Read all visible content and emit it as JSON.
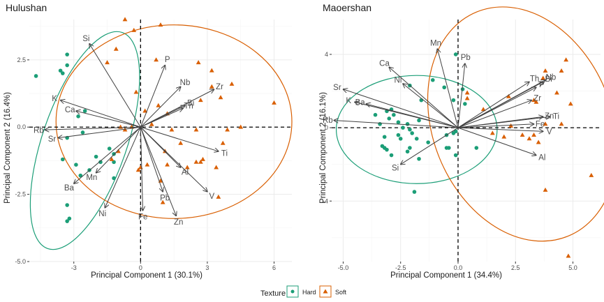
{
  "legend": {
    "title": "Texture",
    "items": [
      {
        "label": "Hard",
        "shape": "circle",
        "color": "#1b9e77"
      },
      {
        "label": "Soft",
        "shape": "triangle",
        "color": "#d95f02"
      }
    ]
  },
  "colors": {
    "hard": "#1b9e77",
    "soft": "#d95f02",
    "arrow": "#404040",
    "label": "#4d4d4d"
  },
  "chart_data": [
    {
      "type": "scatter",
      "subtype": "pca-biplot",
      "title": "Hulushan",
      "xlabel": "Principal Component 1 (30.1%)",
      "ylabel": "Principal Component 2 (16.4%)",
      "xlim": [
        -5.0,
        6.8
      ],
      "ylim": [
        -5.0,
        4.0
      ],
      "xticks": [
        -3,
        0,
        3,
        6
      ],
      "xtick_labels": [
        "-3",
        "0",
        "3",
        "6"
      ],
      "yticks": [
        2.5,
        0.0,
        -2.5,
        -5.0
      ],
      "ytick_labels": [
        "2.5",
        "0.0",
        "-2.5",
        "-5.0"
      ],
      "grid": true,
      "series": [
        {
          "name": "Hard",
          "points": [
            [
              -4.7,
              1.9
            ],
            [
              -3.5,
              2.0
            ],
            [
              -3.6,
              2.1
            ],
            [
              -3.3,
              2.3
            ],
            [
              -3.3,
              2.7
            ],
            [
              -2.6,
              -0.2
            ],
            [
              -2.8,
              0.4
            ],
            [
              -3.3,
              -0.4
            ],
            [
              -2.5,
              0.6
            ],
            [
              -2.0,
              -1.1
            ],
            [
              -2.3,
              -1.6
            ],
            [
              -2.7,
              -1.8
            ],
            [
              -3.5,
              -1.2
            ],
            [
              -2.9,
              -1.4
            ],
            [
              -1.4,
              -0.8
            ],
            [
              -1.8,
              -1.3
            ],
            [
              -1.2,
              -1.0
            ],
            [
              -1.2,
              -1.3
            ],
            [
              -3.3,
              -2.9
            ],
            [
              -3.2,
              -3.4
            ],
            [
              -3.3,
              -3.5
            ],
            [
              -1.2,
              -1.9
            ]
          ]
        },
        {
          "name": "Soft",
          "points": [
            [
              -0.7,
              4.0
            ],
            [
              -0.3,
              3.6
            ],
            [
              0.9,
              3.8
            ],
            [
              -1.1,
              2.9
            ],
            [
              -1.5,
              2.4
            ],
            [
              0.7,
              2.5
            ],
            [
              -0.2,
              1.3
            ],
            [
              -0.9,
              0.0
            ],
            [
              -0.7,
              -0.1
            ],
            [
              -0.4,
              0.0
            ],
            [
              2.6,
              2.4
            ],
            [
              3.2,
              2.1
            ],
            [
              3.2,
              1.5
            ],
            [
              4.1,
              1.6
            ],
            [
              3.6,
              1.1
            ],
            [
              2.7,
              1.0
            ],
            [
              0.2,
              0.6
            ],
            [
              0.8,
              0.8
            ],
            [
              1.2,
              0.5
            ],
            [
              0.5,
              0.1
            ],
            [
              1.4,
              -0.1
            ],
            [
              2.5,
              -0.1
            ],
            [
              3.9,
              -0.1
            ],
            [
              6.0,
              0.9
            ],
            [
              4.5,
              0.0
            ],
            [
              -1.3,
              -1.2
            ],
            [
              -1.0,
              -0.9
            ],
            [
              0.0,
              -1.5
            ],
            [
              -0.1,
              -1.6
            ],
            [
              0.3,
              -1.4
            ],
            [
              1.2,
              -1.4
            ],
            [
              1.1,
              -0.9
            ],
            [
              1.8,
              -0.6
            ],
            [
              0.9,
              -2.0
            ],
            [
              1.0,
              -2.8
            ],
            [
              2.1,
              -1.5
            ],
            [
              2.8,
              -1.2
            ],
            [
              3.4,
              -1.5
            ],
            [
              3.7,
              -0.6
            ],
            [
              2.5,
              -1.3
            ],
            [
              2.7,
              -1.3
            ],
            [
              3.5,
              -2.6
            ]
          ]
        }
      ],
      "ellipses": [
        {
          "group": "Hard",
          "center": [
            -2.5,
            -0.5
          ],
          "semi_axes": [
            1.9,
            4.25
          ],
          "angle_deg": -19
        },
        {
          "group": "Soft",
          "center": [
            1.5,
            0.2
          ],
          "semi_axes": [
            5.3,
            3.6
          ],
          "angle_deg": 0
        }
      ],
      "loadings": [
        {
          "var": "Si",
          "x": -2.3,
          "y": 3.1
        },
        {
          "var": "P",
          "x": 1.1,
          "y": 2.3
        },
        {
          "var": "Nb",
          "x": 1.8,
          "y": 1.5
        },
        {
          "var": "Zr",
          "x": 3.3,
          "y": 1.4
        },
        {
          "var": "Bi",
          "x": 2.0,
          "y": 0.8
        },
        {
          "var": "Th",
          "x": 1.9,
          "y": 0.7
        },
        {
          "var": "K",
          "x": -3.6,
          "y": 1.0
        },
        {
          "var": "Ca",
          "x": -2.9,
          "y": 0.6
        },
        {
          "var": "Rb",
          "x": -4.3,
          "y": -0.1
        },
        {
          "var": "Sr",
          "x": -3.7,
          "y": -0.4
        },
        {
          "var": "Ti",
          "x": 3.5,
          "y": -0.9
        },
        {
          "var": "Mn",
          "x": -2.0,
          "y": -1.7
        },
        {
          "var": "Ba",
          "x": -3.0,
          "y": -2.1
        },
        {
          "var": "Al",
          "x": 1.8,
          "y": -1.5
        },
        {
          "var": "V",
          "x": 3.0,
          "y": -2.4
        },
        {
          "var": "Pb",
          "x": 1.0,
          "y": -2.4
        },
        {
          "var": "Ni",
          "x": -1.6,
          "y": -3.0
        },
        {
          "var": "Fe",
          "x": 0.1,
          "y": -3.1
        },
        {
          "var": "Zn",
          "x": 1.6,
          "y": -3.3
        }
      ]
    },
    {
      "type": "scatter",
      "subtype": "pca-biplot",
      "title": "Maoershan",
      "xlabel": "Principal Component 1 (34.4%)",
      "ylabel": "Principal Component 2 (16.1%)",
      "xlim": [
        -5.5,
        6.2
      ],
      "ylim": [
        -7.3,
        5.9
      ],
      "xticks": [
        -5.0,
        -2.5,
        0.0,
        2.5,
        5.0
      ],
      "xtick_labels": [
        "-5.0",
        "-2.5",
        "0.0",
        "2.5",
        "5.0"
      ],
      "yticks": [
        4,
        0,
        -4
      ],
      "ytick_labels": [
        "4",
        "0",
        "-4"
      ],
      "grid": true,
      "series": [
        {
          "name": "Hard",
          "points": [
            [
              -0.1,
              4.0
            ],
            [
              -1.1,
              2.6
            ],
            [
              -2.1,
              2.3
            ],
            [
              -0.6,
              2.2
            ],
            [
              -2.9,
              1.0
            ],
            [
              -3.1,
              0.9
            ],
            [
              -3.6,
              0.7
            ],
            [
              -2.8,
              0.7
            ],
            [
              -1.6,
              1.5
            ],
            [
              -0.2,
              1.5
            ],
            [
              0.2,
              2.1
            ],
            [
              0.3,
              1.3
            ],
            [
              -3.0,
              0.5
            ],
            [
              -3.4,
              0.2
            ],
            [
              -2.6,
              0.3
            ],
            [
              -2.2,
              0.2
            ],
            [
              -1.7,
              0.4
            ],
            [
              -2.4,
              0.0
            ],
            [
              -2.1,
              -0.1
            ],
            [
              -3.2,
              -0.5
            ],
            [
              -2.6,
              -0.4
            ],
            [
              -2.0,
              -0.3
            ],
            [
              -1.8,
              -0.6
            ],
            [
              -2.5,
              -0.6
            ],
            [
              -3.3,
              -1.0
            ],
            [
              -3.1,
              -1.2
            ],
            [
              -3.2,
              -1.1
            ],
            [
              -2.9,
              -1.5
            ],
            [
              -1.3,
              -0.8
            ],
            [
              -2.1,
              -1.1
            ],
            [
              -2.2,
              -1.3
            ],
            [
              -1.7,
              -1.7
            ],
            [
              -0.5,
              -0.4
            ],
            [
              -0.2,
              -0.3
            ],
            [
              -0.5,
              -1.1
            ],
            [
              -0.4,
              -1.1
            ],
            [
              -0.1,
              -1.5
            ],
            [
              0.8,
              -1.1
            ],
            [
              -1.9,
              -3.5
            ],
            [
              -0.1,
              -0.2
            ]
          ]
        },
        {
          "name": "Soft",
          "points": [
            [
              4.7,
              3.7
            ],
            [
              4.5,
              3.1
            ],
            [
              3.8,
              3.1
            ],
            [
              3.7,
              2.7
            ],
            [
              4.3,
              1.9
            ],
            [
              4.9,
              1.3
            ],
            [
              3.3,
              1.5
            ],
            [
              3.4,
              1.4
            ],
            [
              2.2,
              1.7
            ],
            [
              1.1,
              1.0
            ],
            [
              2.3,
              0.1
            ],
            [
              3.8,
              0.2
            ],
            [
              4.5,
              0.2
            ],
            [
              1.5,
              -0.3
            ],
            [
              2.0,
              -0.5
            ],
            [
              2.8,
              -0.4
            ],
            [
              3.1,
              -0.6
            ],
            [
              3.3,
              -0.4
            ],
            [
              3.5,
              -0.8
            ],
            [
              5.8,
              -2.6
            ],
            [
              3.8,
              -3.4
            ],
            [
              4.8,
              -7.0
            ],
            [
              0.4,
              1.9
            ],
            [
              0.4,
              1.6
            ]
          ]
        }
      ],
      "ellipses": [
        {
          "group": "Hard",
          "center": [
            -1.8,
            -0.1
          ],
          "semi_axes": [
            3.5,
            2.95
          ],
          "angle_deg": 0
        },
        {
          "group": "Soft",
          "center": [
            2.8,
            0.2
          ],
          "semi_axes": [
            3.9,
            6.6
          ],
          "angle_deg": 22
        }
      ],
      "loadings": [
        {
          "var": "Mn",
          "x": -0.9,
          "y": 4.3
        },
        {
          "var": "Pb",
          "x": 0.3,
          "y": 3.5
        },
        {
          "var": "Ca",
          "x": -3.0,
          "y": 3.3
        },
        {
          "var": "Ni",
          "x": -2.4,
          "y": 2.4
        },
        {
          "var": "Sr",
          "x": -5.0,
          "y": 2.1
        },
        {
          "var": "K",
          "x": -4.5,
          "y": 1.4
        },
        {
          "var": "Ba",
          "x": -4.0,
          "y": 1.3
        },
        {
          "var": "Rb",
          "x": -5.4,
          "y": 0.4
        },
        {
          "var": "Si",
          "x": -2.5,
          "y": -2.0
        },
        {
          "var": "Th",
          "x": 3.1,
          "y": 2.5
        },
        {
          "var": "P",
          "x": 3.4,
          "y": 2.2
        },
        {
          "var": "Bi",
          "x": 3.7,
          "y": 2.5
        },
        {
          "var": "Nb",
          "x": 3.8,
          "y": 2.6
        },
        {
          "var": "Zr",
          "x": 3.2,
          "y": 1.5
        },
        {
          "var": "Ti",
          "x": 4.0,
          "y": 0.6
        },
        {
          "var": "Zn",
          "x": 3.7,
          "y": 0.6
        },
        {
          "var": "Fe",
          "x": 3.3,
          "y": 0.2
        },
        {
          "var": "V",
          "x": 3.7,
          "y": -0.2
        },
        {
          "var": "Al",
          "x": 3.4,
          "y": -1.5
        }
      ]
    }
  ]
}
